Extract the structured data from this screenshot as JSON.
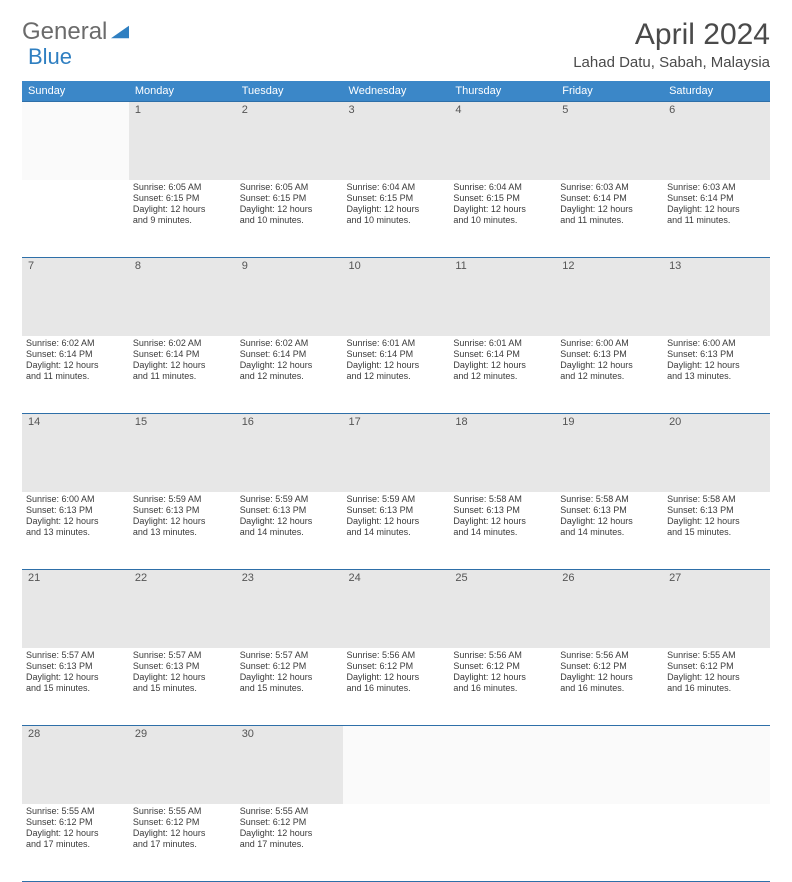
{
  "logo": {
    "text1": "General",
    "text2": "Blue",
    "color1": "#6b6b6b",
    "color2": "#2f7fc1"
  },
  "title": "April 2024",
  "location": "Lahad Datu, Sabah, Malaysia",
  "header_bg": "#3b87c8",
  "header_fg": "#ffffff",
  "daynum_bg": "#e7e7e7",
  "border_color": "#2e6fa8",
  "dow": [
    "Sunday",
    "Monday",
    "Tuesday",
    "Wednesday",
    "Thursday",
    "Friday",
    "Saturday"
  ],
  "weeks": [
    {
      "nums": [
        "",
        "1",
        "2",
        "3",
        "4",
        "5",
        "6"
      ],
      "cells": [
        [],
        [
          "Sunrise: 6:05 AM",
          "Sunset: 6:15 PM",
          "Daylight: 12 hours",
          "and 9 minutes."
        ],
        [
          "Sunrise: 6:05 AM",
          "Sunset: 6:15 PM",
          "Daylight: 12 hours",
          "and 10 minutes."
        ],
        [
          "Sunrise: 6:04 AM",
          "Sunset: 6:15 PM",
          "Daylight: 12 hours",
          "and 10 minutes."
        ],
        [
          "Sunrise: 6:04 AM",
          "Sunset: 6:15 PM",
          "Daylight: 12 hours",
          "and 10 minutes."
        ],
        [
          "Sunrise: 6:03 AM",
          "Sunset: 6:14 PM",
          "Daylight: 12 hours",
          "and 11 minutes."
        ],
        [
          "Sunrise: 6:03 AM",
          "Sunset: 6:14 PM",
          "Daylight: 12 hours",
          "and 11 minutes."
        ]
      ]
    },
    {
      "nums": [
        "7",
        "8",
        "9",
        "10",
        "11",
        "12",
        "13"
      ],
      "cells": [
        [
          "Sunrise: 6:02 AM",
          "Sunset: 6:14 PM",
          "Daylight: 12 hours",
          "and 11 minutes."
        ],
        [
          "Sunrise: 6:02 AM",
          "Sunset: 6:14 PM",
          "Daylight: 12 hours",
          "and 11 minutes."
        ],
        [
          "Sunrise: 6:02 AM",
          "Sunset: 6:14 PM",
          "Daylight: 12 hours",
          "and 12 minutes."
        ],
        [
          "Sunrise: 6:01 AM",
          "Sunset: 6:14 PM",
          "Daylight: 12 hours",
          "and 12 minutes."
        ],
        [
          "Sunrise: 6:01 AM",
          "Sunset: 6:14 PM",
          "Daylight: 12 hours",
          "and 12 minutes."
        ],
        [
          "Sunrise: 6:00 AM",
          "Sunset: 6:13 PM",
          "Daylight: 12 hours",
          "and 12 minutes."
        ],
        [
          "Sunrise: 6:00 AM",
          "Sunset: 6:13 PM",
          "Daylight: 12 hours",
          "and 13 minutes."
        ]
      ]
    },
    {
      "nums": [
        "14",
        "15",
        "16",
        "17",
        "18",
        "19",
        "20"
      ],
      "cells": [
        [
          "Sunrise: 6:00 AM",
          "Sunset: 6:13 PM",
          "Daylight: 12 hours",
          "and 13 minutes."
        ],
        [
          "Sunrise: 5:59 AM",
          "Sunset: 6:13 PM",
          "Daylight: 12 hours",
          "and 13 minutes."
        ],
        [
          "Sunrise: 5:59 AM",
          "Sunset: 6:13 PM",
          "Daylight: 12 hours",
          "and 14 minutes."
        ],
        [
          "Sunrise: 5:59 AM",
          "Sunset: 6:13 PM",
          "Daylight: 12 hours",
          "and 14 minutes."
        ],
        [
          "Sunrise: 5:58 AM",
          "Sunset: 6:13 PM",
          "Daylight: 12 hours",
          "and 14 minutes."
        ],
        [
          "Sunrise: 5:58 AM",
          "Sunset: 6:13 PM",
          "Daylight: 12 hours",
          "and 14 minutes."
        ],
        [
          "Sunrise: 5:58 AM",
          "Sunset: 6:13 PM",
          "Daylight: 12 hours",
          "and 15 minutes."
        ]
      ]
    },
    {
      "nums": [
        "21",
        "22",
        "23",
        "24",
        "25",
        "26",
        "27"
      ],
      "cells": [
        [
          "Sunrise: 5:57 AM",
          "Sunset: 6:13 PM",
          "Daylight: 12 hours",
          "and 15 minutes."
        ],
        [
          "Sunrise: 5:57 AM",
          "Sunset: 6:13 PM",
          "Daylight: 12 hours",
          "and 15 minutes."
        ],
        [
          "Sunrise: 5:57 AM",
          "Sunset: 6:12 PM",
          "Daylight: 12 hours",
          "and 15 minutes."
        ],
        [
          "Sunrise: 5:56 AM",
          "Sunset: 6:12 PM",
          "Daylight: 12 hours",
          "and 16 minutes."
        ],
        [
          "Sunrise: 5:56 AM",
          "Sunset: 6:12 PM",
          "Daylight: 12 hours",
          "and 16 minutes."
        ],
        [
          "Sunrise: 5:56 AM",
          "Sunset: 6:12 PM",
          "Daylight: 12 hours",
          "and 16 minutes."
        ],
        [
          "Sunrise: 5:55 AM",
          "Sunset: 6:12 PM",
          "Daylight: 12 hours",
          "and 16 minutes."
        ]
      ]
    },
    {
      "nums": [
        "28",
        "29",
        "30",
        "",
        "",
        "",
        ""
      ],
      "cells": [
        [
          "Sunrise: 5:55 AM",
          "Sunset: 6:12 PM",
          "Daylight: 12 hours",
          "and 17 minutes."
        ],
        [
          "Sunrise: 5:55 AM",
          "Sunset: 6:12 PM",
          "Daylight: 12 hours",
          "and 17 minutes."
        ],
        [
          "Sunrise: 5:55 AM",
          "Sunset: 6:12 PM",
          "Daylight: 12 hours",
          "and 17 minutes."
        ],
        [],
        [],
        [],
        []
      ]
    }
  ]
}
